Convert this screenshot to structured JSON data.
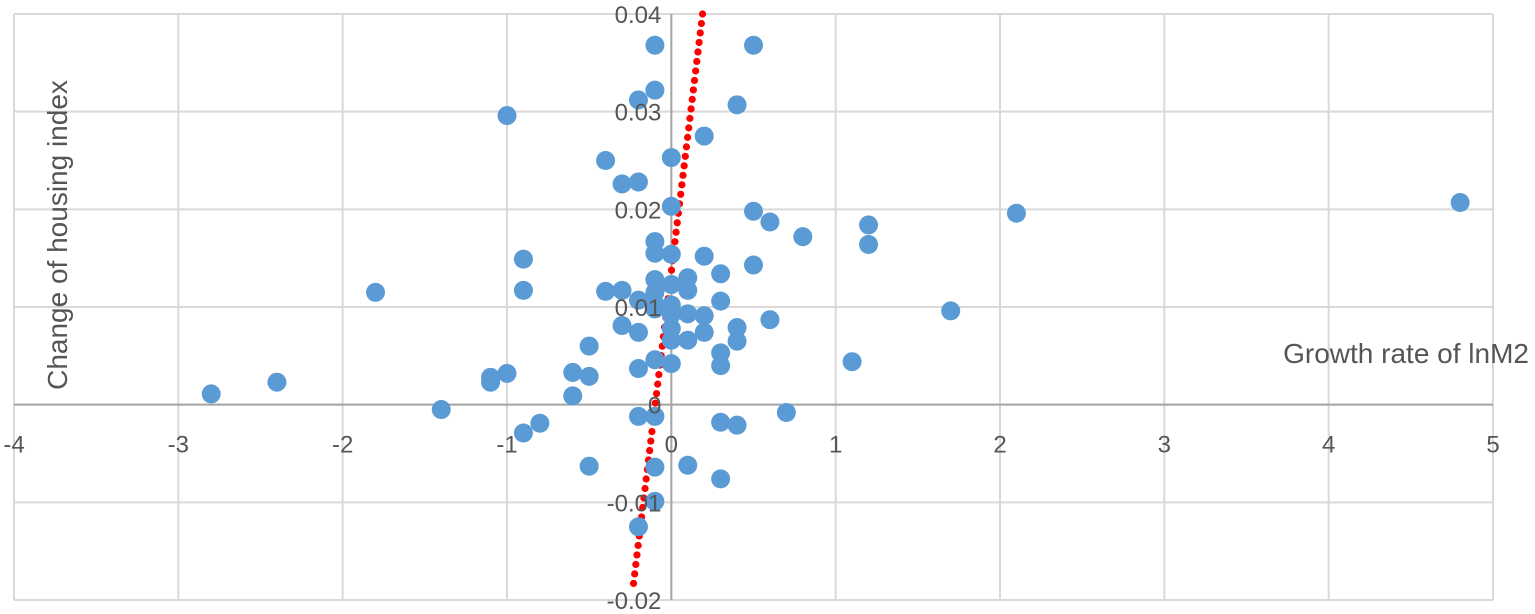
{
  "chart_data": {
    "type": "scatter",
    "title": "",
    "xlabel": "Growth rate of lnM2",
    "ylabel": "Change of housing index",
    "xlim": [
      -4,
      5
    ],
    "ylim": [
      -0.02,
      0.04
    ],
    "x_ticks": [
      -4,
      -3,
      -2,
      -1,
      0,
      1,
      2,
      3,
      4,
      5
    ],
    "y_ticks": [
      -0.02,
      -0.01,
      0,
      0.01,
      0.02,
      0.03,
      0.04
    ],
    "x_tick_labels": [
      "-4",
      "-3",
      "-2",
      "-1",
      "0",
      "1",
      "2",
      "3",
      "4",
      "5"
    ],
    "y_tick_labels": [
      "-0.02",
      "-0.01",
      "0",
      "0.01",
      "0.02",
      "0.03",
      "0.04"
    ],
    "grid": true,
    "legend": "none",
    "series": [
      {
        "color": "#5b9bd5",
        "points": [
          [
            -0.1,
            0.0368
          ],
          [
            0.5,
            0.0368
          ],
          [
            -0.1,
            0.0322
          ],
          [
            -0.2,
            0.0312
          ],
          [
            0.4,
            0.0307
          ],
          [
            -1.0,
            0.0296
          ],
          [
            0.2,
            0.0275
          ],
          [
            0.0,
            0.0253
          ],
          [
            -0.4,
            0.025
          ],
          [
            -0.2,
            0.0228
          ],
          [
            -0.3,
            0.0226
          ],
          [
            0.0,
            0.0203
          ],
          [
            0.5,
            0.0198
          ],
          [
            2.1,
            0.0196
          ],
          [
            4.8,
            0.0207
          ],
          [
            0.6,
            0.0187
          ],
          [
            1.2,
            0.0184
          ],
          [
            0.8,
            0.0172
          ],
          [
            1.2,
            0.0164
          ],
          [
            -0.1,
            0.0167
          ],
          [
            -0.1,
            0.0155
          ],
          [
            0.0,
            0.0154
          ],
          [
            0.2,
            0.0152
          ],
          [
            -0.9,
            0.0149
          ],
          [
            0.5,
            0.0143
          ],
          [
            0.3,
            0.0134
          ],
          [
            -0.1,
            0.0128
          ],
          [
            0.1,
            0.013
          ],
          [
            0.0,
            0.0123
          ],
          [
            -0.9,
            0.0117
          ],
          [
            -1.8,
            0.0115
          ],
          [
            -0.4,
            0.0116
          ],
          [
            -0.3,
            0.0117
          ],
          [
            -0.1,
            0.0115
          ],
          [
            0.1,
            0.0117
          ],
          [
            -0.2,
            0.0107
          ],
          [
            -0.1,
            0.0103
          ],
          [
            0.3,
            0.0106
          ],
          [
            0.0,
            0.0102
          ],
          [
            1.7,
            0.0096
          ],
          [
            -0.1,
            0.0098
          ],
          [
            0.0,
            0.0092
          ],
          [
            0.1,
            0.0093
          ],
          [
            0.2,
            0.0091
          ],
          [
            0.6,
            0.0087
          ],
          [
            -0.3,
            0.0081
          ],
          [
            0.0,
            0.0078
          ],
          [
            0.4,
            0.0079
          ],
          [
            -0.2,
            0.0074
          ],
          [
            0.2,
            0.0074
          ],
          [
            0.1,
            0.0066
          ],
          [
            0.0,
            0.0066
          ],
          [
            0.4,
            0.0065
          ],
          [
            -0.5,
            0.006
          ],
          [
            0.3,
            0.0053
          ],
          [
            -0.1,
            0.0046
          ],
          [
            0.0,
            0.0042
          ],
          [
            0.3,
            0.004
          ],
          [
            1.1,
            0.0044
          ],
          [
            -0.2,
            0.0037
          ],
          [
            -0.6,
            0.0033
          ],
          [
            -1.0,
            0.0032
          ],
          [
            -0.5,
            0.0029
          ],
          [
            -1.1,
            0.0028
          ],
          [
            -1.1,
            0.0023
          ],
          [
            -2.4,
            0.0023
          ],
          [
            -2.8,
            0.0011
          ],
          [
            -0.6,
            0.0009
          ],
          [
            -1.4,
            -0.0005
          ],
          [
            0.7,
            -0.0008
          ],
          [
            -0.2,
            -0.0012
          ],
          [
            -0.1,
            -0.0012
          ],
          [
            0.3,
            -0.0018
          ],
          [
            0.4,
            -0.0021
          ],
          [
            -0.8,
            -0.0019
          ],
          [
            -0.9,
            -0.0029
          ],
          [
            -0.5,
            -0.0063
          ],
          [
            -0.1,
            -0.0064
          ],
          [
            0.1,
            -0.0062
          ],
          [
            0.3,
            -0.0076
          ],
          [
            -0.1,
            -0.0099
          ],
          [
            -0.2,
            -0.0125
          ]
        ]
      }
    ],
    "trendline": {
      "color": "#ff0000",
      "style": "dotted",
      "type": "linear",
      "start": [
        -0.23,
        -0.0183
      ],
      "end": [
        0.19,
        0.04
      ]
    }
  }
}
